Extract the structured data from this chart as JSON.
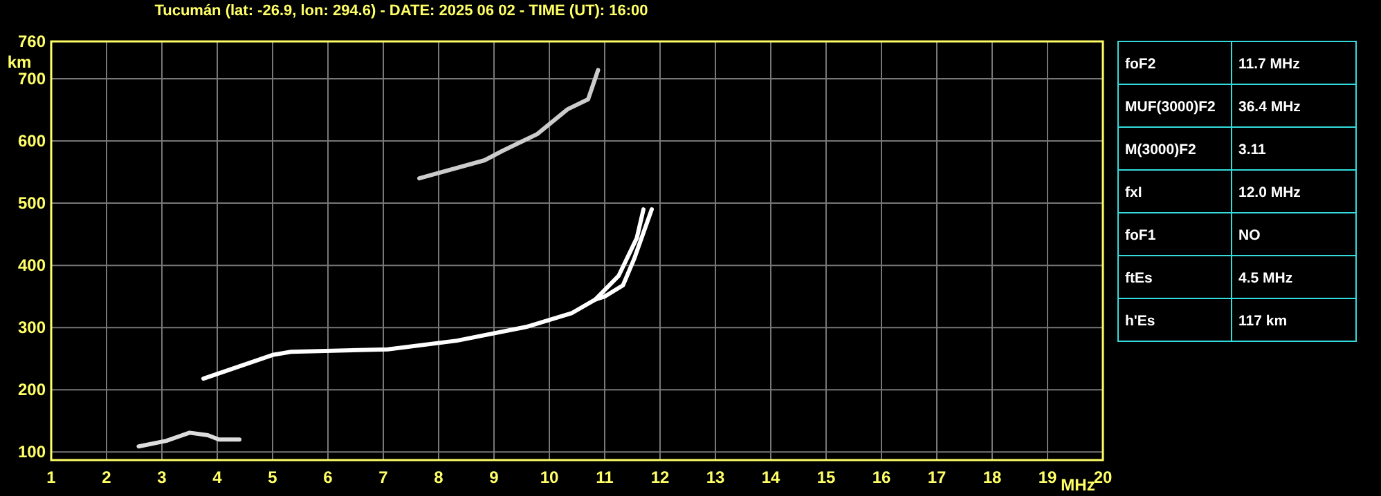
{
  "chart_data": {
    "type": "line",
    "title": "Tucumán (lat: -26.9, lon: 294.6) - DATE: 2025 06 02 - TIME (UT): 16:00",
    "xlabel": "MHz",
    "ylabel": "km",
    "xlim": [
      1,
      20
    ],
    "ylim": [
      87,
      760
    ],
    "xticks": [
      1,
      2,
      3,
      4,
      5,
      6,
      7,
      8,
      9,
      10,
      11,
      12,
      13,
      14,
      15,
      16,
      17,
      18,
      19,
      20
    ],
    "yticks": [
      100,
      200,
      300,
      400,
      500,
      600,
      700,
      760
    ],
    "grid": true,
    "marker": "none",
    "line_style": "solid",
    "series": [
      {
        "color": "#ffffff",
        "x": [
          3.75,
          5.0,
          5.33,
          7.08,
          8.33,
          9.58,
          10.4,
          10.83,
          11.25,
          11.58,
          11.7
        ],
        "values": [
          218,
          256,
          261,
          265,
          279,
          301,
          323,
          345,
          383,
          444,
          490
        ]
      },
      {
        "color": "#ffffff",
        "x": [
          10.83,
          11.0,
          11.33,
          11.53,
          11.85
        ],
        "values": [
          345,
          350,
          368,
          410,
          490
        ]
      },
      {
        "color": "#dddddd",
        "x": [
          2.58,
          3.08,
          3.5,
          3.83,
          4.03,
          4.4
        ],
        "values": [
          109,
          118,
          131,
          127,
          120,
          120
        ]
      },
      {
        "color": "#cccccc",
        "x": [
          7.65,
          8.83,
          9.15,
          9.78,
          10.33,
          10.7,
          10.88
        ],
        "values": [
          540,
          569,
          584,
          611,
          651,
          667,
          714
        ]
      }
    ],
    "annotations": [
      "foF2",
      "11.7 MHz",
      "MUF(3000)F2",
      "36.4 MHz",
      "M(3000)F2",
      "3.11",
      "fxI",
      "12.0 MHz",
      "foF1",
      "NO",
      "ftEs",
      "4.5 MHz",
      "h'Es",
      "117 km"
    ]
  }
}
